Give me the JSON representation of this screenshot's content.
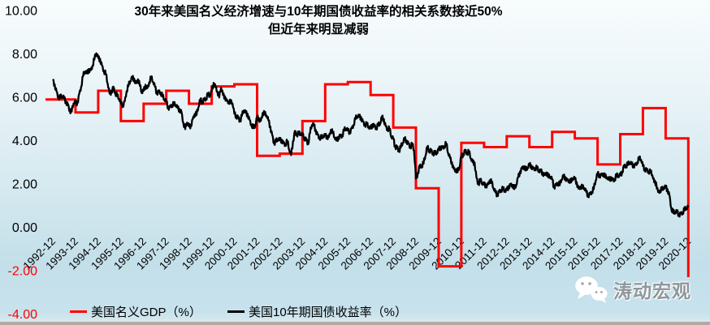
{
  "title": {
    "line1": "30年来美国名义经济增速与10年期国债收益率的相关系数接近50%",
    "line2": "但近年来明显减弱"
  },
  "legend": [
    {
      "label": "美国名义GDP（%）",
      "color": "#ff0000"
    },
    {
      "label": "美国10年期国债收益率（%）",
      "color": "#000000"
    }
  ],
  "watermark": {
    "text": "涛动宏观",
    "icon": "wechat-icon"
  },
  "colors": {
    "axis": "#dedede",
    "gdp_line": "#ff0000",
    "yield_line": "#000000",
    "negative_tick_label": "#ff0000",
    "positive_tick_label": "#000000"
  },
  "chart_data": {
    "type": "line",
    "title": "30年来美国名义经济增速与10年期国债收益率的相关系数接近50% 但近年来明显减弱",
    "xlabel": "",
    "ylabel": "",
    "ylim": [
      -4,
      10
    ],
    "grid": false,
    "legend_position": "bottom",
    "yticks": [
      {
        "label": "10.00",
        "value": 10,
        "color": "#000000"
      },
      {
        "label": "8.00",
        "value": 8,
        "color": "#000000"
      },
      {
        "label": "6.00",
        "value": 6,
        "color": "#000000"
      },
      {
        "label": "4.00",
        "value": 4,
        "color": "#000000"
      },
      {
        "label": "2.00",
        "value": 2,
        "color": "#000000"
      },
      {
        "label": "0.00",
        "value": 0,
        "color": "#000000"
      },
      {
        "label": "-2.00",
        "value": -2,
        "color": "#ff0000"
      },
      {
        "label": "-4.00",
        "value": -4,
        "color": "#ff0000"
      }
    ],
    "x_tick_labels": [
      "1992-12",
      "1993-12",
      "1994-12",
      "1995-12",
      "1996-12",
      "1997-12",
      "1998-12",
      "1999-12",
      "2000-12",
      "2001-12",
      "2002-12",
      "2003-12",
      "2004-12",
      "2005-12",
      "2006-12",
      "2007-12",
      "2008-12",
      "2009-12",
      "2010-12",
      "2011-12",
      "2012-12",
      "2013-12",
      "2014-12",
      "2015-12",
      "2016-12",
      "2017-12",
      "2018-12",
      "2019-12",
      "2020-12"
    ],
    "series": [
      {
        "name": "美国名义GDP（%）",
        "color": "#ff0000",
        "render": "step",
        "interval": "yearly",
        "categories": [
          "1992-12",
          "1993-12",
          "1994-12",
          "1995-12",
          "1996-12",
          "1997-12",
          "1998-12",
          "1999-12",
          "2000-12",
          "2001-12",
          "2002-12",
          "2003-12",
          "2004-12",
          "2005-12",
          "2006-12",
          "2007-12",
          "2008-12",
          "2009-12",
          "2010-12",
          "2011-12",
          "2012-12",
          "2013-12",
          "2014-12",
          "2015-12",
          "2016-12",
          "2017-12",
          "2018-12",
          "2019-12",
          "2020-12"
        ],
        "values": [
          5.9,
          5.3,
          6.3,
          4.9,
          5.7,
          6.3,
          5.7,
          6.5,
          6.6,
          3.3,
          3.4,
          4.9,
          6.6,
          6.7,
          6.1,
          4.6,
          1.8,
          -1.8,
          3.9,
          3.7,
          4.2,
          3.7,
          4.4,
          4.1,
          2.9,
          4.3,
          5.5,
          4.1,
          -2.3
        ]
      },
      {
        "name": "美国10年期国债收益率（%）",
        "color": "#000000",
        "render": "line",
        "interval": "monthly",
        "start": "1992-12",
        "noise_amplitude": 0.045,
        "values": [
          6.77,
          6.6,
          6.26,
          5.98,
          5.97,
          6.04,
          5.96,
          5.81,
          5.68,
          5.36,
          5.33,
          5.72,
          5.77,
          5.75,
          6.17,
          6.48,
          6.97,
          7.18,
          7.1,
          7.3,
          7.24,
          7.46,
          7.74,
          8.03,
          7.81,
          7.78,
          7.47,
          7.2,
          7.06,
          6.63,
          6.17,
          6.28,
          6.49,
          6.2,
          6.04,
          5.93,
          5.71,
          5.65,
          5.81,
          6.27,
          6.51,
          6.74,
          6.91,
          6.87,
          6.64,
          6.83,
          6.53,
          6.2,
          6.3,
          6.58,
          6.42,
          6.69,
          6.89,
          6.71,
          6.49,
          6.22,
          6.3,
          6.21,
          6.03,
          5.88,
          5.81,
          5.54,
          5.57,
          5.65,
          5.64,
          5.65,
          5.5,
          5.46,
          5.34,
          4.81,
          4.53,
          4.83,
          4.65,
          4.72,
          5.0,
          5.23,
          5.18,
          5.54,
          5.9,
          5.79,
          5.94,
          5.92,
          6.11,
          6.03,
          6.28,
          6.66,
          6.52,
          6.26,
          5.99,
          6.44,
          6.1,
          6.05,
          5.83,
          5.8,
          5.74,
          5.72,
          5.24,
          5.16,
          5.1,
          4.89,
          5.14,
          5.39,
          5.28,
          5.24,
          4.97,
          4.73,
          4.57,
          4.65,
          5.09,
          5.04,
          4.91,
          5.28,
          5.21,
          5.16,
          4.93,
          4.65,
          4.26,
          3.87,
          3.94,
          4.05,
          4.03,
          4.05,
          3.9,
          3.81,
          3.96,
          3.57,
          3.33,
          3.98,
          4.45,
          4.27,
          4.29,
          4.3,
          4.27,
          4.15,
          4.08,
          3.83,
          4.35,
          4.72,
          4.73,
          4.5,
          4.28,
          4.13,
          4.1,
          4.19,
          4.23,
          4.22,
          4.17,
          4.5,
          4.34,
          4.14,
          4.0,
          4.18,
          4.26,
          4.2,
          4.46,
          4.54,
          4.47,
          4.42,
          4.57,
          4.72,
          4.99,
          5.11,
          5.11,
          5.09,
          4.88,
          4.72,
          4.73,
          4.6,
          4.56,
          4.76,
          4.72,
          4.56,
          4.69,
          4.75,
          5.1,
          5.0,
          4.67,
          4.52,
          4.53,
          4.15,
          4.1,
          3.74,
          3.74,
          3.51,
          3.68,
          3.88,
          4.1,
          4.01,
          3.89,
          3.69,
          3.81,
          3.53,
          2.25,
          2.52,
          2.87,
          2.82,
          2.93,
          3.29,
          3.72,
          3.56,
          3.59,
          3.4,
          3.39,
          3.4,
          3.59,
          3.73,
          3.69,
          3.73,
          3.85,
          3.42,
          3.2,
          3.01,
          2.7,
          2.65,
          2.54,
          2.76,
          3.29,
          3.39,
          3.58,
          3.41,
          3.46,
          3.17,
          3.0,
          3.0,
          2.3,
          1.98,
          2.15,
          2.01,
          1.98,
          1.97,
          1.97,
          2.17,
          2.05,
          1.8,
          1.62,
          1.53,
          1.68,
          1.72,
          1.75,
          1.65,
          1.72,
          1.91,
          1.98,
          1.96,
          1.76,
          1.93,
          2.3,
          2.58,
          2.74,
          2.81,
          2.62,
          2.72,
          2.9,
          2.86,
          2.71,
          2.72,
          2.71,
          2.56,
          2.6,
          2.54,
          2.42,
          2.53,
          2.3,
          2.33,
          2.21,
          1.88,
          1.98,
          2.04,
          1.94,
          2.2,
          2.36,
          2.32,
          2.17,
          2.17,
          2.07,
          2.26,
          2.24,
          2.09,
          1.78,
          1.89,
          1.81,
          1.81,
          1.64,
          1.5,
          1.56,
          1.63,
          1.76,
          2.14,
          2.49,
          2.43,
          2.42,
          2.48,
          2.3,
          2.3,
          2.19,
          2.32,
          2.21,
          2.2,
          2.36,
          2.35,
          2.4,
          2.58,
          2.86,
          2.84,
          2.87,
          2.98,
          2.91,
          2.89,
          2.89,
          3.0,
          3.15,
          3.12,
          2.83,
          2.71,
          2.68,
          2.57,
          2.53,
          2.4,
          2.07,
          2.07,
          1.63,
          1.7,
          1.71,
          1.81,
          1.86,
          1.76,
          1.5,
          0.87,
          0.66,
          0.67,
          0.73,
          0.62,
          0.65,
          0.68,
          0.79,
          0.87,
          0.93
        ]
      }
    ]
  }
}
